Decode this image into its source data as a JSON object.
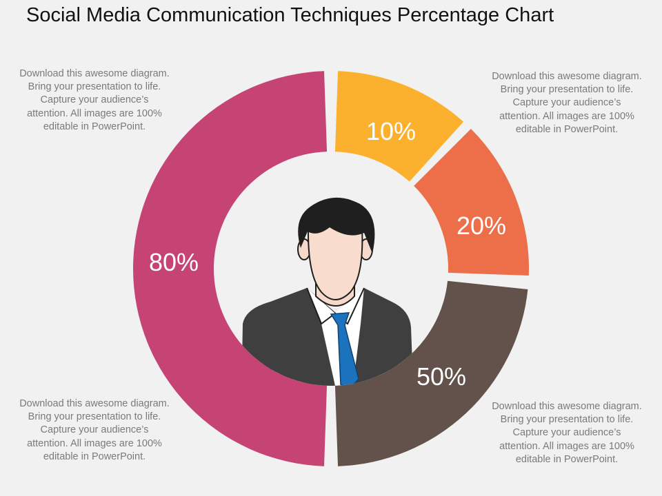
{
  "title": "Social Media Communication Techniques Percentage Chart",
  "notes": {
    "top_left": "Download this awesome diagram. Bring your presentation to life. Capture your audience’s attention. All images are 100% editable in PowerPoint.",
    "top_right": "Download this awesome diagram. Bring your presentation to life. Capture your audience’s attention. All images are 100% editable in PowerPoint.",
    "bottom_left": "Download this awesome diagram. Bring your presentation to life. Capture your audience’s attention. All images are 100% editable in PowerPoint.",
    "bottom_right": "Download this awesome diagram. Bring your presentation to life. Capture your audience’s attention. All images are 100% editable in PowerPoint."
  },
  "center_icon": "businessman-avatar-icon",
  "chart_data": {
    "type": "pie",
    "style": "donut",
    "title": "Social Media Communication Techniques Percentage Chart",
    "segments": [
      {
        "label": "10%",
        "value": 10,
        "color": "#fbb12d"
      },
      {
        "label": "20%",
        "value": 20,
        "color": "#ec6f4a"
      },
      {
        "label": "50%",
        "value": 50,
        "color": "#62524b"
      },
      {
        "label": "80%",
        "value": 80,
        "color": "#c54474"
      }
    ],
    "legend": "none"
  }
}
